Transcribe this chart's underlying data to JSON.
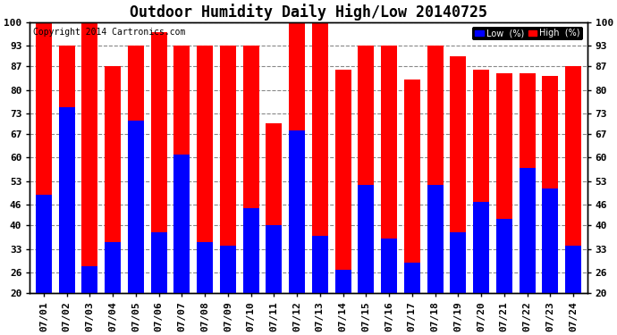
{
  "title": "Outdoor Humidity Daily High/Low 20140725",
  "copyright": "Copyright 2014 Cartronics.com",
  "dates": [
    "07/01",
    "07/02",
    "07/03",
    "07/04",
    "07/05",
    "07/06",
    "07/07",
    "07/08",
    "07/09",
    "07/10",
    "07/11",
    "07/12",
    "07/13",
    "07/14",
    "07/15",
    "07/16",
    "07/17",
    "07/18",
    "07/19",
    "07/20",
    "07/21",
    "07/22",
    "07/23",
    "07/24"
  ],
  "high_values": [
    100,
    93,
    100,
    87,
    93,
    97,
    93,
    93,
    93,
    93,
    70,
    101,
    100,
    86,
    93,
    93,
    83,
    93,
    90,
    86,
    85,
    85,
    84,
    87
  ],
  "low_values": [
    49,
    75,
    28,
    35,
    71,
    38,
    61,
    35,
    34,
    45,
    40,
    68,
    37,
    27,
    52,
    36,
    29,
    52,
    38,
    47,
    42,
    57,
    51,
    34
  ],
  "bar_color_high": "#ff0000",
  "bar_color_low": "#0000ff",
  "bg_color": "#ffffff",
  "grid_color": "#888888",
  "ylim_min": 20,
  "ylim_max": 100,
  "yticks": [
    20,
    26,
    33,
    40,
    46,
    53,
    60,
    67,
    73,
    80,
    87,
    93,
    100
  ],
  "legend_low_label": "Low  (%)",
  "legend_high_label": "High  (%)",
  "title_fontsize": 12,
  "copyright_fontsize": 7,
  "tick_fontsize": 8,
  "bar_width": 0.7
}
